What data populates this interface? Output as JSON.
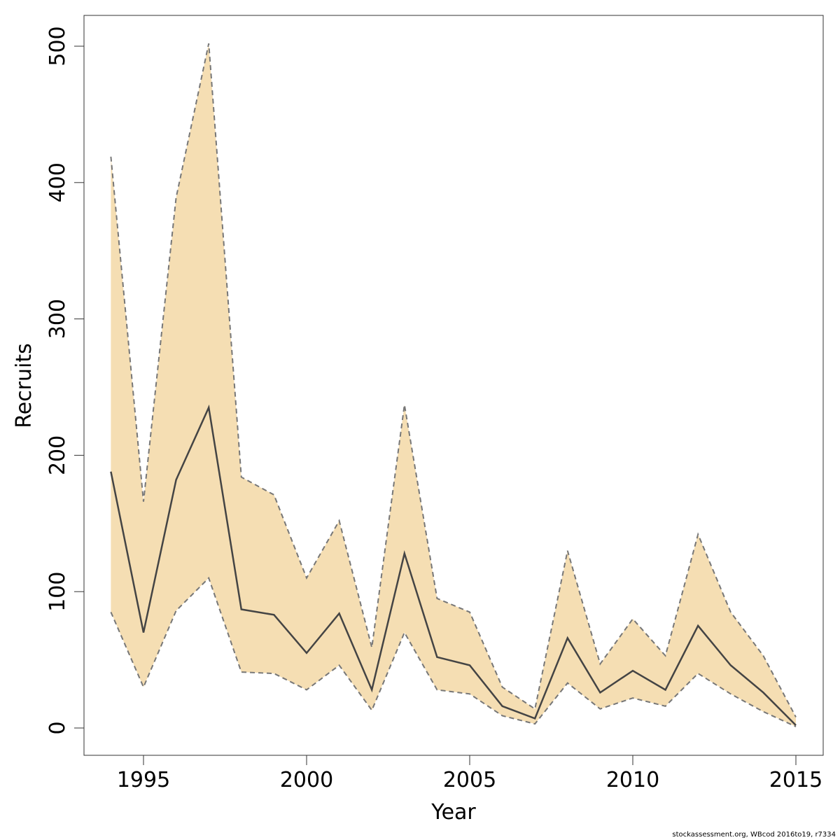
{
  "chart_data": {
    "type": "area",
    "title": "",
    "xlabel": "Year",
    "ylabel": "Recruits",
    "xlim": [
      1994,
      2015
    ],
    "ylim": [
      0,
      500
    ],
    "xticks": [
      "1995",
      "2000",
      "2005",
      "2010",
      "2015"
    ],
    "yticks": [
      "0",
      "100",
      "200",
      "300",
      "400",
      "500"
    ],
    "x": [
      1994,
      1995,
      1996,
      1997,
      1998,
      1999,
      2000,
      2001,
      2002,
      2003,
      2004,
      2005,
      2006,
      2007,
      2008,
      2009,
      2010,
      2011,
      2012,
      2013,
      2014,
      2015
    ],
    "series": [
      {
        "name": "Recruits",
        "values": [
          188,
          70,
          182,
          235,
          87,
          83,
          55,
          84,
          28,
          128,
          52,
          46,
          16,
          7,
          66,
          26,
          42,
          28,
          75,
          46,
          26,
          2
        ]
      },
      {
        "name": "Upper",
        "values": [
          419,
          166,
          389,
          502,
          184,
          171,
          110,
          152,
          59,
          237,
          95,
          85,
          30,
          14,
          130,
          47,
          80,
          53,
          142,
          85,
          53,
          8
        ]
      },
      {
        "name": "Lower",
        "values": [
          85,
          30,
          86,
          110,
          41,
          40,
          28,
          46,
          13,
          70,
          28,
          25,
          9,
          3,
          33,
          14,
          22,
          16,
          40,
          25,
          12,
          1
        ]
      }
    ],
    "colors": {
      "band": "#f5deb3",
      "line": "#444444",
      "bound": "#777777"
    },
    "grid": false
  },
  "footer": "stockassessment.org, WBcod  2016to19, r7334"
}
